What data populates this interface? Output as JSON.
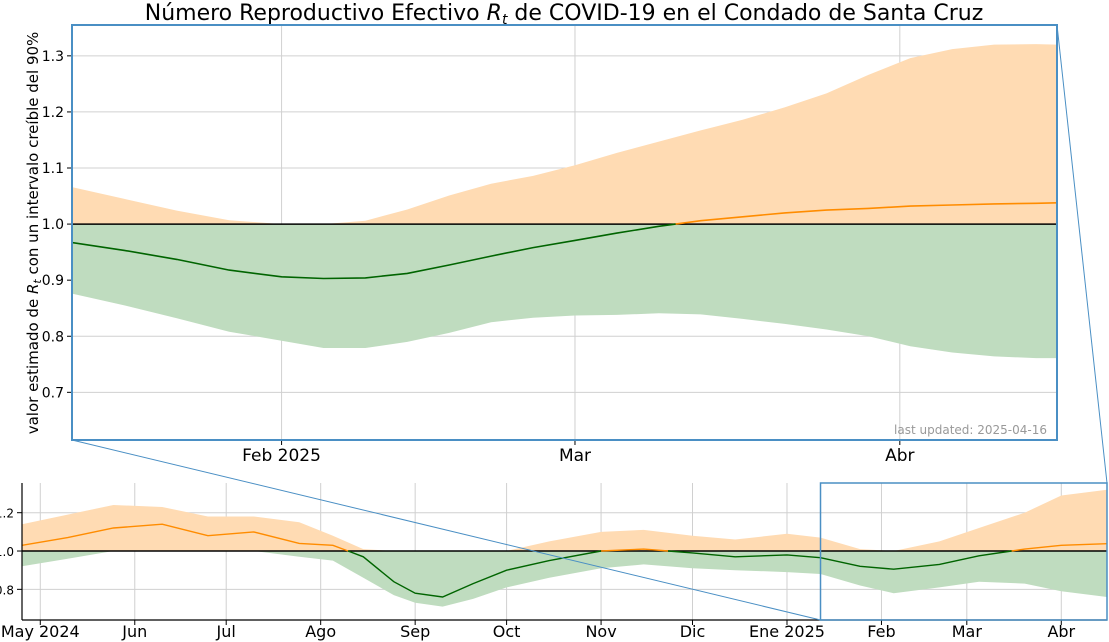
{
  "chart_data": [
    {
      "name": "main",
      "type": "area",
      "title": "Número Reproductivo Efectivo R_t de COVID-19 en el Condado de Santa Cruz",
      "title_parts": {
        "pre": "Número Reproductivo Efectivo ",
        "r": "R",
        "sub": "t",
        "post": " de COVID-19 en el Condado de Santa Cruz"
      },
      "ylabel": "valor estimado de R_t con un intervalo creíble del 90%",
      "ylabel_parts": {
        "pre": "valor estimado de ",
        "r": "R",
        "sub": "t",
        "post": " con un intervalo creíble del 90%"
      },
      "annotation": "last updated: 2025-04-16",
      "xlim": [
        "2025-01-12",
        "2025-04-16"
      ],
      "ylim": [
        0.615,
        1.355
      ],
      "xticks": [
        {
          "date": "2025-02-01",
          "label": "Feb 2025"
        },
        {
          "date": "2025-03-01",
          "label": "Mar"
        },
        {
          "date": "2025-04-01",
          "label": "Abr"
        }
      ],
      "yticks": [
        {
          "value": 0.7,
          "label": "0.7"
        },
        {
          "value": 0.8,
          "label": "0.8"
        },
        {
          "value": 0.9,
          "label": "0.9"
        },
        {
          "value": 1.0,
          "label": "1.0"
        },
        {
          "value": 1.1,
          "label": "1.1"
        },
        {
          "value": 1.2,
          "label": "1.2"
        },
        {
          "value": 1.3,
          "label": "1.3"
        }
      ],
      "reference_line": 1.0,
      "grid": true,
      "x": [
        "2025-01-12",
        "2025-01-17",
        "2025-01-22",
        "2025-01-27",
        "2025-02-01",
        "2025-02-05",
        "2025-02-09",
        "2025-02-13",
        "2025-02-17",
        "2025-02-21",
        "2025-02-25",
        "2025-03-01",
        "2025-03-05",
        "2025-03-09",
        "2025-03-13",
        "2025-03-17",
        "2025-03-21",
        "2025-03-25",
        "2025-03-29",
        "2025-04-02",
        "2025-04-06",
        "2025-04-10",
        "2025-04-14",
        "2025-04-16"
      ],
      "median": [
        0.967,
        0.953,
        0.937,
        0.918,
        0.906,
        0.903,
        0.904,
        0.912,
        0.927,
        0.943,
        0.958,
        0.971,
        0.984,
        0.996,
        1.006,
        1.013,
        1.02,
        1.025,
        1.028,
        1.032,
        1.034,
        1.036,
        1.037,
        1.038
      ],
      "upper": [
        1.066,
        1.045,
        1.024,
        1.007,
        0.999,
        1.0,
        1.006,
        1.026,
        1.051,
        1.072,
        1.086,
        1.105,
        1.127,
        1.147,
        1.167,
        1.186,
        1.208,
        1.233,
        1.266,
        1.296,
        1.312,
        1.32,
        1.321,
        1.32
      ],
      "lower": [
        0.876,
        0.855,
        0.832,
        0.808,
        0.792,
        0.779,
        0.779,
        0.79,
        0.806,
        0.825,
        0.833,
        0.837,
        0.838,
        0.841,
        0.839,
        0.831,
        0.822,
        0.812,
        0.8,
        0.782,
        0.771,
        0.764,
        0.761,
        0.761
      ],
      "colors": {
        "median_above": "#ff8c00",
        "median_below": "#006400",
        "band_above": "#ffdbb3",
        "band_below": "#bfdcbf",
        "reference": "#000000",
        "frame": "#4a8fc4"
      }
    },
    {
      "name": "overview",
      "type": "area",
      "xlim": [
        "2024-04-25",
        "2025-04-16"
      ],
      "ylim": [
        0.64,
        1.355
      ],
      "xticks": [
        {
          "date": "2024-05-01",
          "label": "May 2024"
        },
        {
          "date": "2024-06-01",
          "label": "Jun"
        },
        {
          "date": "2024-07-01",
          "label": "Jul"
        },
        {
          "date": "2024-08-01",
          "label": "Ago"
        },
        {
          "date": "2024-09-01",
          "label": "Sep"
        },
        {
          "date": "2024-10-01",
          "label": "Oct"
        },
        {
          "date": "2024-11-01",
          "label": "Nov"
        },
        {
          "date": "2024-12-01",
          "label": "Dic"
        },
        {
          "date": "2025-01-01",
          "label": "Ene 2025"
        },
        {
          "date": "2025-02-01",
          "label": "Feb"
        },
        {
          "date": "2025-03-01",
          "label": "Mar"
        },
        {
          "date": "2025-04-01",
          "label": "Abr"
        }
      ],
      "yticks": [
        {
          "value": 0.8,
          "label": "0.8"
        },
        {
          "value": 1.0,
          "label": "1.0"
        },
        {
          "value": 1.2,
          "label": "1.2"
        }
      ],
      "reference_line": 1.0,
      "grid": true,
      "zoom_window": {
        "x": [
          "2025-01-12",
          "2025-04-16"
        ],
        "y": [
          0.615,
          1.355
        ]
      },
      "x": [
        "2024-04-25",
        "2024-05-10",
        "2024-05-25",
        "2024-06-10",
        "2024-06-25",
        "2024-07-10",
        "2024-07-25",
        "2024-08-05",
        "2024-08-15",
        "2024-08-25",
        "2024-09-01",
        "2024-09-10",
        "2024-09-20",
        "2024-10-01",
        "2024-10-15",
        "2024-11-01",
        "2024-11-15",
        "2024-12-01",
        "2024-12-15",
        "2025-01-01",
        "2025-01-12",
        "2025-01-25",
        "2025-02-05",
        "2025-02-20",
        "2025-03-05",
        "2025-03-20",
        "2025-04-01",
        "2025-04-16"
      ],
      "median": [
        1.03,
        1.07,
        1.12,
        1.14,
        1.08,
        1.1,
        1.04,
        1.03,
        0.97,
        0.84,
        0.78,
        0.76,
        0.83,
        0.9,
        0.95,
        1.0,
        1.01,
        0.99,
        0.97,
        0.98,
        0.965,
        0.92,
        0.905,
        0.93,
        0.975,
        1.01,
        1.03,
        1.038
      ],
      "upper": [
        1.14,
        1.19,
        1.24,
        1.23,
        1.18,
        1.18,
        1.15,
        1.08,
        1.01,
        0.93,
        0.86,
        0.85,
        0.92,
        0.99,
        1.05,
        1.1,
        1.11,
        1.08,
        1.06,
        1.09,
        1.07,
        1.01,
        1.0,
        1.05,
        1.12,
        1.2,
        1.29,
        1.32
      ],
      "lower": [
        0.92,
        0.96,
        1.02,
        1.05,
        1.0,
        1.01,
        0.97,
        0.95,
        0.86,
        0.77,
        0.73,
        0.71,
        0.75,
        0.81,
        0.86,
        0.91,
        0.93,
        0.91,
        0.9,
        0.89,
        0.88,
        0.82,
        0.78,
        0.81,
        0.84,
        0.83,
        0.79,
        0.76
      ],
      "colors": {
        "median_above": "#ff8c00",
        "median_below": "#006400",
        "band_above": "#ffdbb3",
        "band_below": "#bfdcbf",
        "reference": "#000000",
        "frame": "#4a8fc4"
      }
    }
  ]
}
